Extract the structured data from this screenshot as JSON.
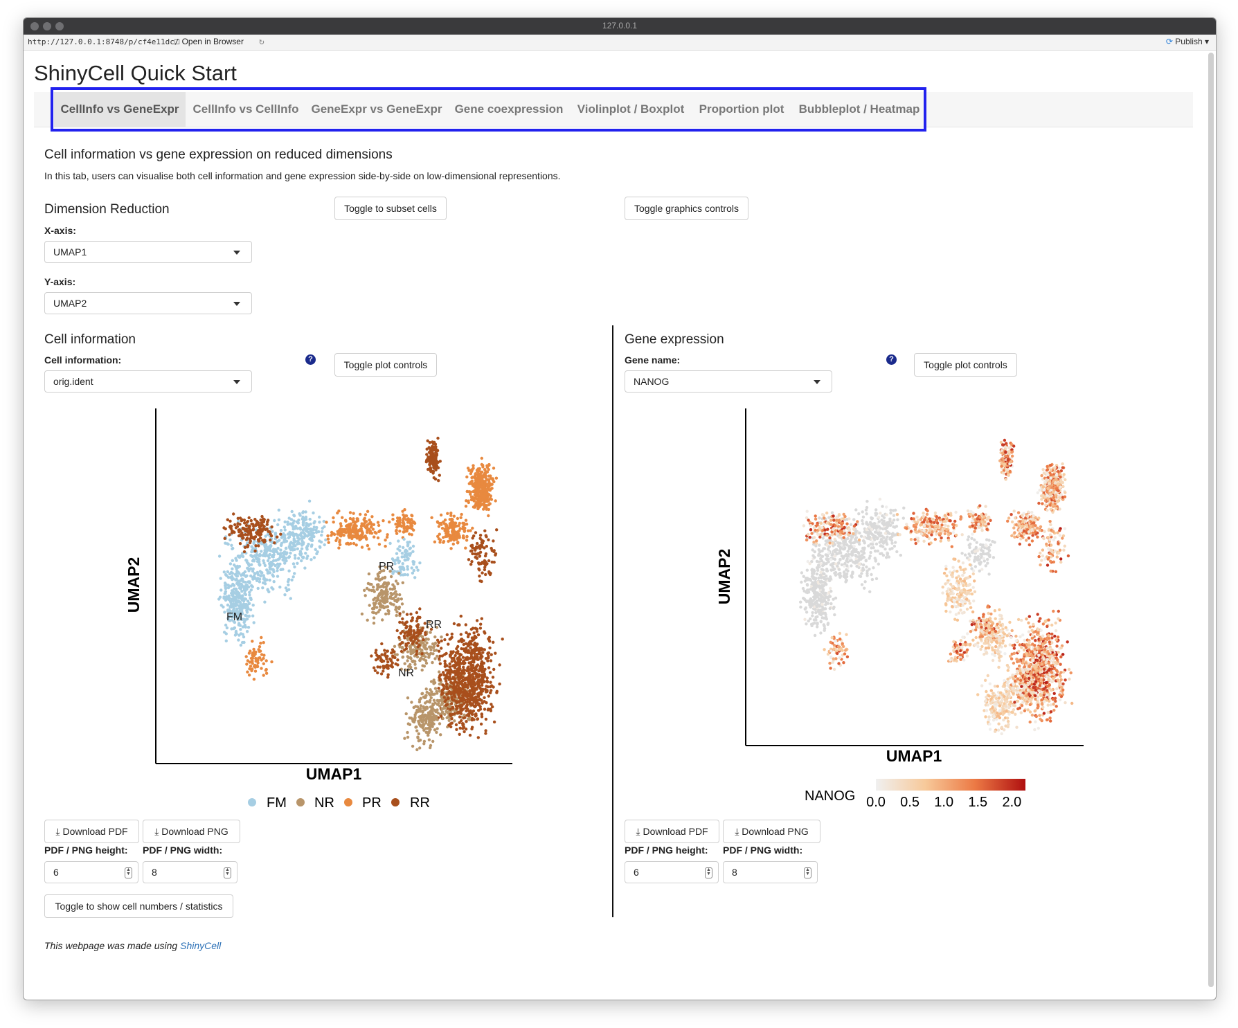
{
  "window": {
    "title": "127.0.0.1",
    "url": "http://127.0.0.1:8748/p/cf4e11dc/",
    "open_in_browser": "Open in Browser",
    "publish": "Publish"
  },
  "app": {
    "title": "ShinyCell Quick Start",
    "tabs": [
      {
        "label": "CellInfo vs GeneExpr",
        "active": true
      },
      {
        "label": "CellInfo vs CellInfo"
      },
      {
        "label": "GeneExpr vs GeneExpr"
      },
      {
        "label": "Gene coexpression"
      },
      {
        "label": "Violinplot / Boxplot"
      },
      {
        "label": "Proportion plot"
      },
      {
        "label": "Bubbleplot / Heatmap"
      }
    ]
  },
  "main": {
    "heading": "Cell information vs gene expression on reduced dimensions",
    "description": "In this tab, users can visualise both cell information and gene expression side-by-side on low-dimensional representions.",
    "dimred": {
      "heading": "Dimension Reduction",
      "x_label": "X-axis:",
      "x_value": "UMAP1",
      "y_label": "Y-axis:",
      "y_value": "UMAP2"
    },
    "toggle_subset": "Toggle to subset cells",
    "toggle_graphics": "Toggle graphics controls",
    "cellinfo": {
      "heading": "Cell information",
      "label": "Cell information:",
      "value": "orig.ident",
      "toggle": "Toggle plot controls",
      "help": "?",
      "download_pdf": "Download PDF",
      "download_png": "Download PNG",
      "height_label": "PDF / PNG height:",
      "height_value": "6",
      "width_label": "PDF / PNG width:",
      "width_value": "8",
      "toggle_stats": "Toggle to show cell numbers / statistics"
    },
    "geneexpr": {
      "heading": "Gene expression",
      "label": "Gene name:",
      "value": "NANOG",
      "toggle": "Toggle plot controls",
      "help": "?",
      "download_pdf": "Download PDF",
      "download_png": "Download PNG",
      "height_label": "PDF / PNG height:",
      "height_value": "6",
      "width_label": "PDF / PNG width:",
      "width_value": "8"
    },
    "footer_text": "This webpage was made using ",
    "footer_link": "ShinyCell"
  },
  "chart_data": [
    {
      "type": "scatter",
      "xlabel": "UMAP1",
      "ylabel": "UMAP2",
      "cluster_labels": [
        "PR",
        "FM",
        "RR",
        "NR"
      ],
      "legend": [
        {
          "name": "FM",
          "color": "#a6cee3"
        },
        {
          "name": "NR",
          "color": "#b8956a"
        },
        {
          "name": "PR",
          "color": "#e8893f"
        },
        {
          "name": "RR",
          "color": "#a84f1c"
        }
      ],
      "legend_position": "bottom"
    },
    {
      "type": "scatter",
      "xlabel": "UMAP1",
      "ylabel": "UMAP2",
      "colorbar": {
        "title": "NANOG",
        "ticks": [
          "0.0",
          "0.5",
          "1.0",
          "1.5",
          "2.0"
        ],
        "range": [
          0,
          2.2
        ],
        "colors": [
          "#f0f0f0",
          "#f7c99a",
          "#ec7a45",
          "#b01010"
        ]
      },
      "legend_position": "bottom"
    }
  ]
}
